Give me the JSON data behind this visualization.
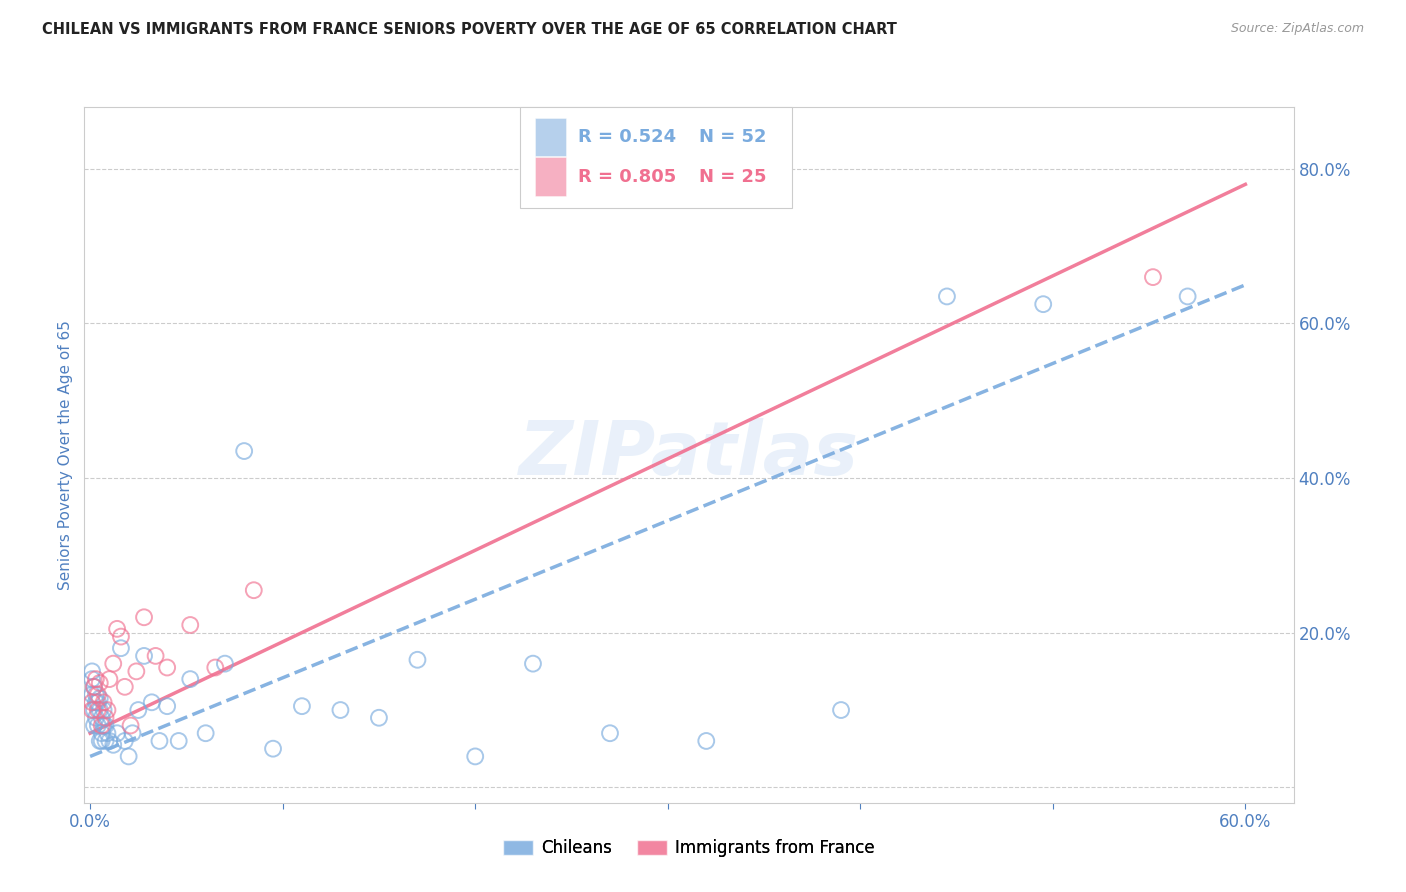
{
  "title": "CHILEAN VS IMMIGRANTS FROM FRANCE SENIORS POVERTY OVER THE AGE OF 65 CORRELATION CHART",
  "source": "Source: ZipAtlas.com",
  "ylabel_label": "Seniors Poverty Over the Age of 65",
  "xlim": [
    -0.003,
    0.625
  ],
  "ylim": [
    -0.02,
    0.88
  ],
  "xticks": [
    0.0,
    0.1,
    0.2,
    0.3,
    0.4,
    0.5,
    0.6
  ],
  "xtick_labels_show": [
    true,
    false,
    false,
    false,
    false,
    false,
    true
  ],
  "yticks": [
    0.0,
    0.2,
    0.4,
    0.6,
    0.8
  ],
  "tick_color": "#5080C0",
  "background_color": "#ffffff",
  "watermark": "ZIPatlas",
  "legend_r1": "R = 0.524",
  "legend_n1": "N = 52",
  "legend_r2": "R = 0.805",
  "legend_n2": "N = 25",
  "series1_color": "#7AABDE",
  "series2_color": "#F07090",
  "series1_label": "Chileans",
  "series2_label": "Immigrants from France",
  "chileans_x": [
    0.001,
    0.001,
    0.001,
    0.002,
    0.002,
    0.002,
    0.003,
    0.003,
    0.003,
    0.004,
    0.004,
    0.005,
    0.005,
    0.005,
    0.006,
    0.006,
    0.006,
    0.007,
    0.007,
    0.008,
    0.008,
    0.009,
    0.01,
    0.012,
    0.014,
    0.016,
    0.018,
    0.02,
    0.022,
    0.025,
    0.028,
    0.032,
    0.036,
    0.04,
    0.046,
    0.052,
    0.06,
    0.07,
    0.08,
    0.095,
    0.11,
    0.13,
    0.15,
    0.17,
    0.2,
    0.23,
    0.27,
    0.32,
    0.39,
    0.445,
    0.495,
    0.57
  ],
  "chileans_y": [
    0.12,
    0.14,
    0.15,
    0.13,
    0.1,
    0.08,
    0.11,
    0.12,
    0.09,
    0.11,
    0.08,
    0.1,
    0.06,
    0.115,
    0.07,
    0.09,
    0.06,
    0.08,
    0.1,
    0.06,
    0.08,
    0.07,
    0.06,
    0.055,
    0.07,
    0.18,
    0.06,
    0.04,
    0.07,
    0.1,
    0.17,
    0.11,
    0.06,
    0.105,
    0.06,
    0.14,
    0.07,
    0.16,
    0.435,
    0.05,
    0.105,
    0.1,
    0.09,
    0.165,
    0.04,
    0.16,
    0.07,
    0.06,
    0.1,
    0.635,
    0.625,
    0.635
  ],
  "france_x": [
    0.001,
    0.001,
    0.002,
    0.003,
    0.004,
    0.004,
    0.005,
    0.006,
    0.007,
    0.008,
    0.009,
    0.01,
    0.012,
    0.014,
    0.016,
    0.018,
    0.021,
    0.024,
    0.028,
    0.034,
    0.04,
    0.052,
    0.065,
    0.085,
    0.552
  ],
  "france_y": [
    0.1,
    0.11,
    0.13,
    0.14,
    0.12,
    0.1,
    0.135,
    0.08,
    0.11,
    0.09,
    0.1,
    0.14,
    0.16,
    0.205,
    0.195,
    0.13,
    0.08,
    0.15,
    0.22,
    0.17,
    0.155,
    0.21,
    0.155,
    0.255,
    0.66
  ],
  "chileans_trend_x": [
    0.0,
    0.6
  ],
  "chileans_trend_y": [
    0.04,
    0.65
  ],
  "france_trend_x": [
    0.0,
    0.6
  ],
  "france_trend_y": [
    0.07,
    0.78
  ],
  "gridline_color": "#cccccc",
  "dot_size": 130,
  "dot_lw": 1.4
}
